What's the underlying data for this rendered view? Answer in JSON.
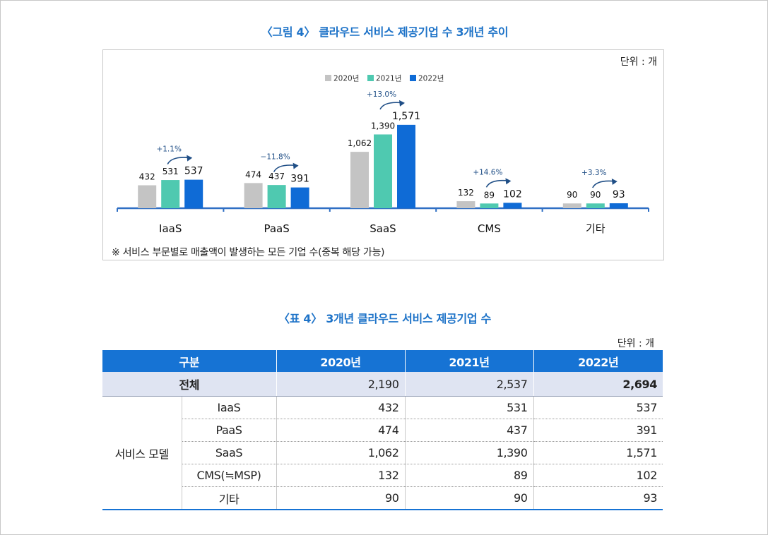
{
  "figure": {
    "title": "〈그림 4〉 클라우드 서비스 제공기업 수 3개년 추이",
    "unit": "단위 : 개",
    "note": "※ 서비스 부문별로 매출액이 발생하는 모든 기업 수(중복 해당 가능)"
  },
  "chart_data": {
    "type": "bar",
    "title": "〈그림 4〉 클라우드 서비스 제공기업 수 3개년 추이",
    "categories": [
      "IaaS",
      "PaaS",
      "SaaS",
      "CMS",
      "기타"
    ],
    "series": [
      {
        "name": "2020년",
        "color": "#c4c4c4",
        "values": [
          432,
          474,
          1062,
          132,
          90
        ],
        "labels": [
          "432",
          "474",
          "1,062",
          "132",
          "90"
        ]
      },
      {
        "name": "2021년",
        "color": "#4fc9b0",
        "values": [
          531,
          437,
          1390,
          89,
          90
        ],
        "labels": [
          "531",
          "437",
          "1,390",
          "89",
          "90"
        ]
      },
      {
        "name": "2022년",
        "color": "#0f6bd6",
        "values": [
          537,
          391,
          1571,
          102,
          93
        ],
        "labels": [
          "537",
          "391",
          "1,571",
          "102",
          "93"
        ]
      }
    ],
    "growth": [
      "+1.1%",
      "−11.8%",
      "+13.0%",
      "+14.6%",
      "+3.3%"
    ],
    "ylim": [
      0,
      1700
    ],
    "legend": "top-center",
    "grid": false,
    "axis_color": "#2f6fc4",
    "growth_color": "#1f4e86"
  },
  "table": {
    "title": "〈표 4〉 3개년 클라우드 서비스 제공기업 수",
    "unit": "단위 : 개",
    "headers": [
      "구분",
      "2020년",
      "2021년",
      "2022년"
    ],
    "total": {
      "label": "전체",
      "values": [
        "2,190",
        "2,537",
        "2,694"
      ]
    },
    "group_label": "서비스 모델",
    "rows": [
      {
        "label": "IaaS",
        "values": [
          "432",
          "531",
          "537"
        ]
      },
      {
        "label": "PaaS",
        "values": [
          "474",
          "437",
          "391"
        ]
      },
      {
        "label": "SaaS",
        "values": [
          "1,062",
          "1,390",
          "1,571"
        ]
      },
      {
        "label": "CMS(≒MSP)",
        "values": [
          "132",
          "89",
          "102"
        ]
      },
      {
        "label": "기타",
        "values": [
          "90",
          "90",
          "93"
        ]
      }
    ]
  }
}
